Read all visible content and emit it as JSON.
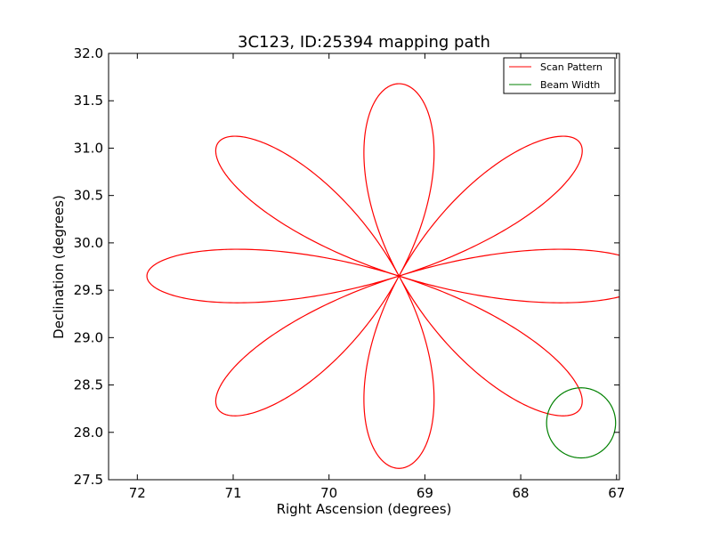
{
  "chart_data": {
    "type": "line",
    "title": "3C123, ID:25394 mapping path",
    "xlabel": "Right Ascension (degrees)",
    "ylabel": "Declination (degrees)",
    "xlim": [
      72.3,
      66.97
    ],
    "ylim": [
      27.5,
      32.0
    ],
    "x_inverted": true,
    "grid": false,
    "legend_position": "top-right",
    "xticks": [
      72,
      71,
      70,
      69,
      68,
      67
    ],
    "xtick_labels": [
      "72",
      "71",
      "70",
      "69",
      "68",
      "67"
    ],
    "yticks": [
      27.5,
      28.0,
      28.5,
      29.0,
      29.5,
      30.0,
      30.5,
      31.0,
      31.5,
      32.0
    ],
    "ytick_labels": [
      "27.5",
      "28.0",
      "28.5",
      "29.0",
      "29.5",
      "30.0",
      "30.5",
      "31.0",
      "31.5",
      "32.0"
    ],
    "series": [
      {
        "name": "Scan Pattern",
        "color": "#ff0000",
        "kind": "rose",
        "center": [
          69.27,
          29.65
        ],
        "petals": 8,
        "x_amplitude": 2.63,
        "y_amplitude": 2.03,
        "start_angle_deg": 180,
        "end_angle_deg": 537.5
      },
      {
        "name": "Beam Width",
        "color": "#008000",
        "kind": "circle",
        "center": [
          67.37,
          28.1
        ],
        "radius_x": 0.36,
        "radius_y": 0.37
      }
    ]
  }
}
